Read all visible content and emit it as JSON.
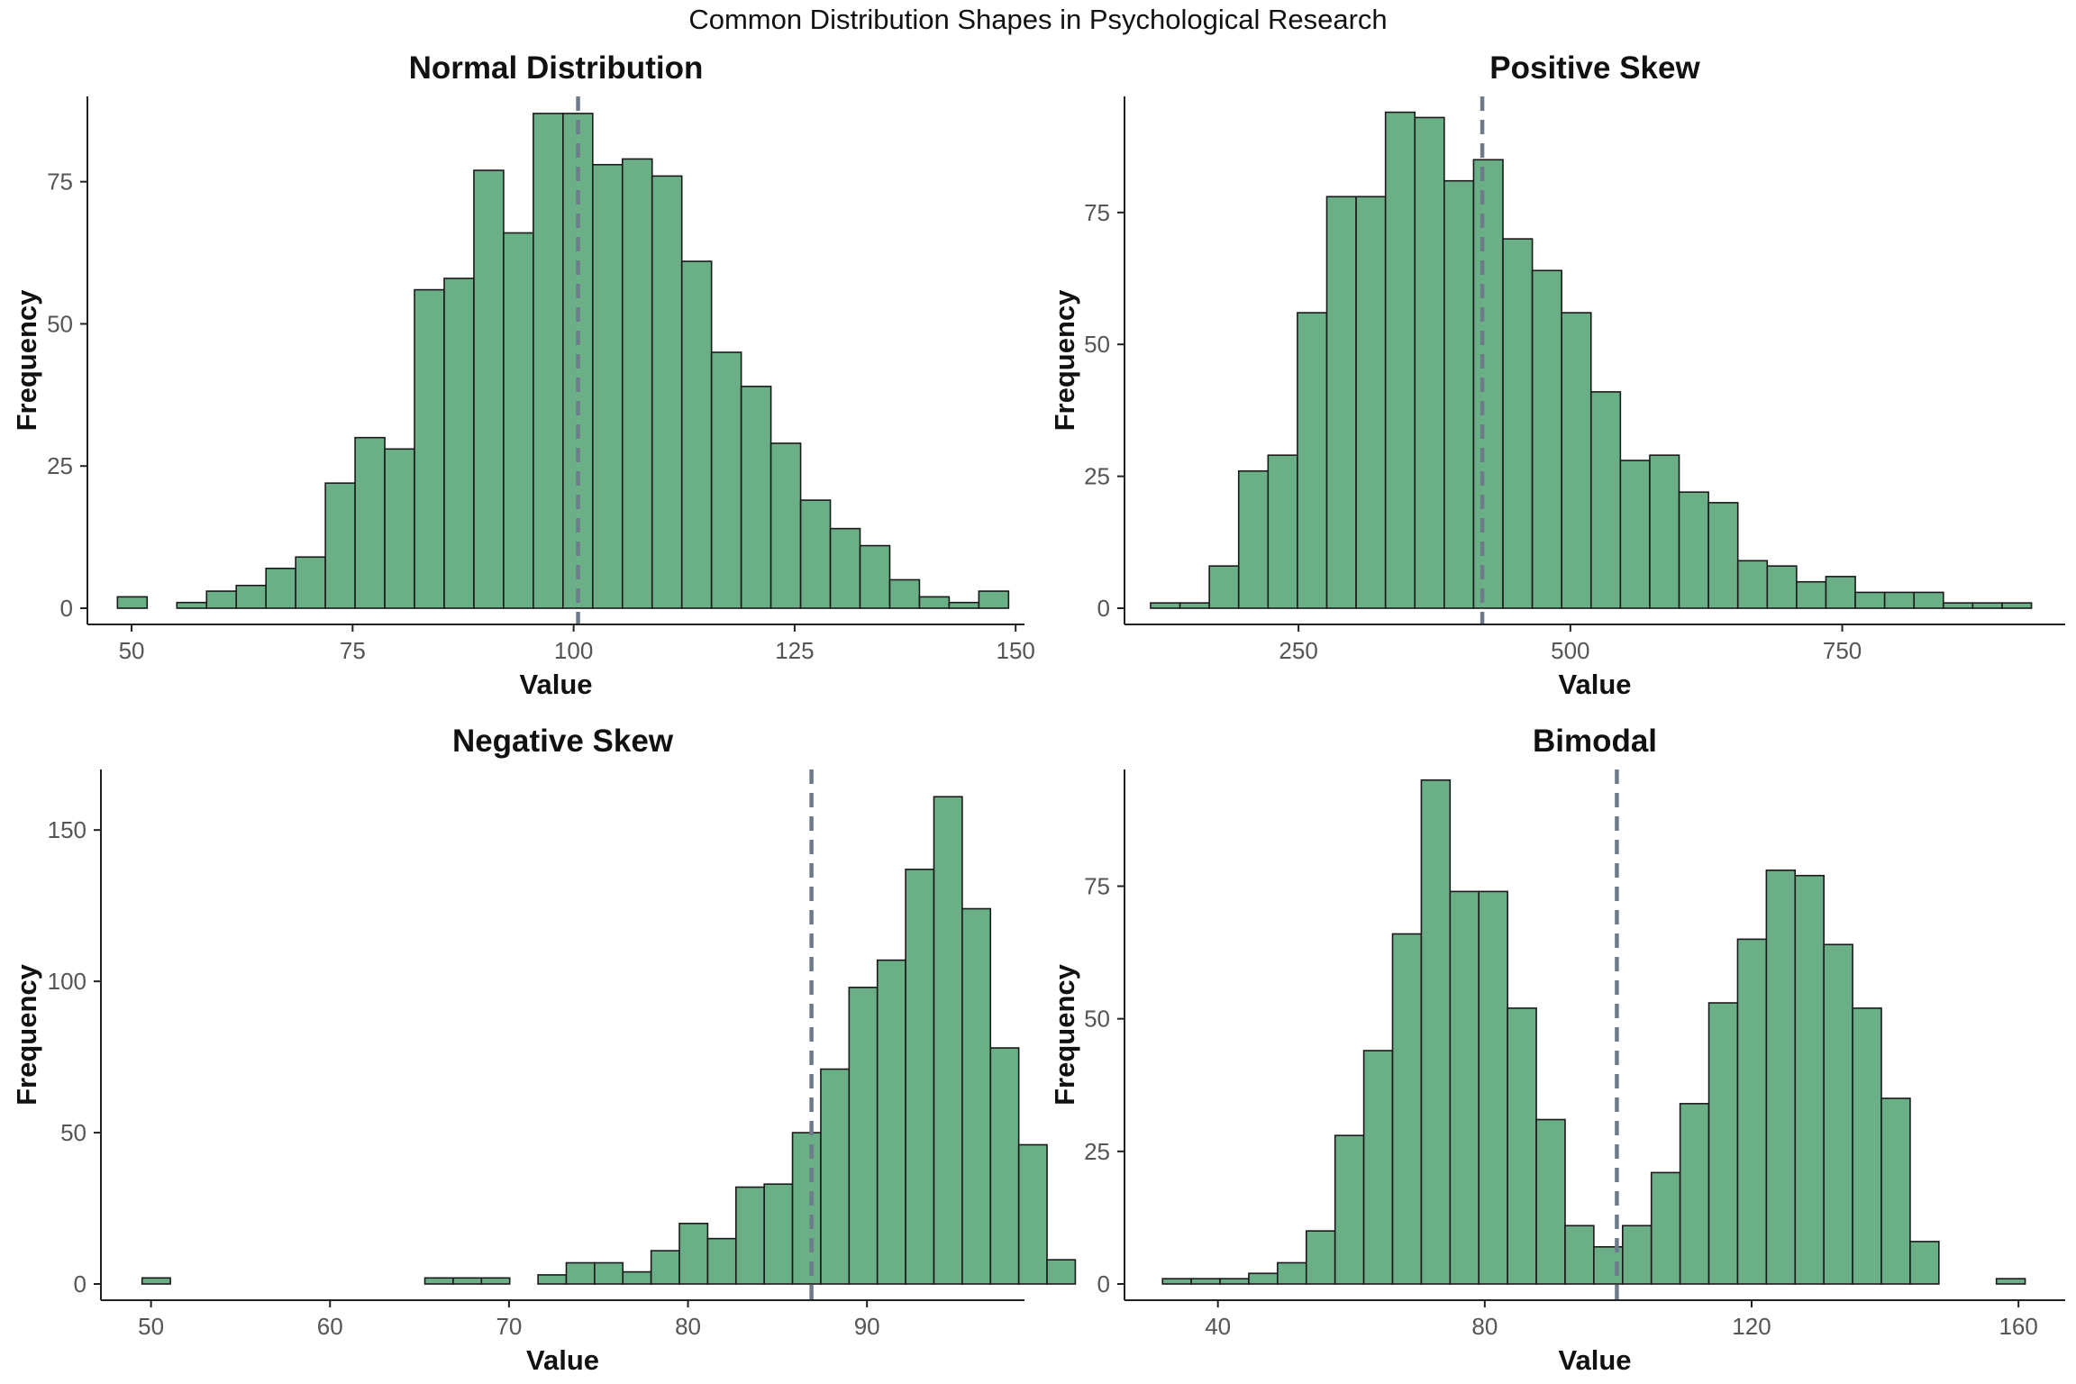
{
  "figure": {
    "title": "Common Distribution Shapes in Psychological Research"
  },
  "style": {
    "bar_fill": "#6aaf86",
    "bar_stroke": "#1a1a1a",
    "mean_line": "#6e7b8b",
    "axis": "#222222",
    "tick_text": "#555555"
  },
  "chart_data": [
    {
      "type": "bar",
      "title": "Normal Distribution",
      "xlabel": "Value",
      "ylabel": "Frequency",
      "xlim": [
        45,
        151
      ],
      "ylim": [
        0,
        90
      ],
      "xticks": [
        50,
        75,
        100,
        125,
        150
      ],
      "yticks": [
        0,
        25,
        50,
        75
      ],
      "bin_start": 48.4,
      "bin_width": 3.36,
      "values": [
        2,
        0,
        1,
        3,
        4,
        7,
        9,
        22,
        30,
        28,
        56,
        58,
        77,
        66,
        87,
        87,
        78,
        79,
        76,
        61,
        45,
        39,
        29,
        19,
        14,
        11,
        5,
        2,
        1,
        3
      ],
      "mean": 100.5
    },
    {
      "type": "bar",
      "title": "Positive Skew",
      "xlabel": "Value",
      "ylabel": "Frequency",
      "xlim": [
        90,
        955
      ],
      "ylim": [
        0,
        97
      ],
      "xticks": [
        250,
        500,
        750
      ],
      "yticks": [
        0,
        25,
        50,
        75
      ],
      "bin_start": 114,
      "bin_width": 27,
      "values": [
        1,
        1,
        8,
        26,
        29,
        56,
        78,
        78,
        94,
        93,
        81,
        85,
        70,
        64,
        56,
        41,
        28,
        29,
        22,
        20,
        9,
        8,
        5,
        6,
        3,
        3,
        3,
        1,
        1,
        1
      ],
      "mean": 419
    },
    {
      "type": "bar",
      "title": "Negative Skew",
      "xlabel": "Value",
      "ylabel": "Frequency",
      "xlim": [
        47.2,
        98.8
      ],
      "ylim": [
        0,
        170
      ],
      "xticks": [
        50,
        60,
        70,
        80,
        90
      ],
      "yticks": [
        0,
        50,
        100,
        150
      ],
      "bin_start": 49.5,
      "bin_width": 1.58,
      "values": [
        2,
        0,
        0,
        0,
        0,
        0,
        0,
        0,
        0,
        0,
        2,
        2,
        2,
        0,
        3,
        7,
        7,
        4,
        11,
        20,
        15,
        32,
        33,
        50,
        71,
        98,
        107,
        137,
        161,
        124,
        78,
        46,
        8
      ],
      "mean": 86.9
    },
    {
      "type": "bar",
      "title": "Bimodal",
      "xlabel": "Value",
      "ylabel": "Frequency",
      "xlim": [
        26,
        167
      ],
      "ylim": [
        0,
        97
      ],
      "xticks": [
        40,
        80,
        120,
        160
      ],
      "yticks": [
        0,
        25,
        50,
        75
      ],
      "bin_start": 31.7,
      "bin_width": 4.31,
      "values": [
        1,
        1,
        1,
        2,
        4,
        10,
        28,
        44,
        66,
        95,
        74,
        74,
        52,
        31,
        11,
        7,
        11,
        21,
        34,
        53,
        65,
        78,
        77,
        64,
        52,
        35,
        8,
        0,
        0,
        1
      ],
      "mean": 99.8
    }
  ]
}
